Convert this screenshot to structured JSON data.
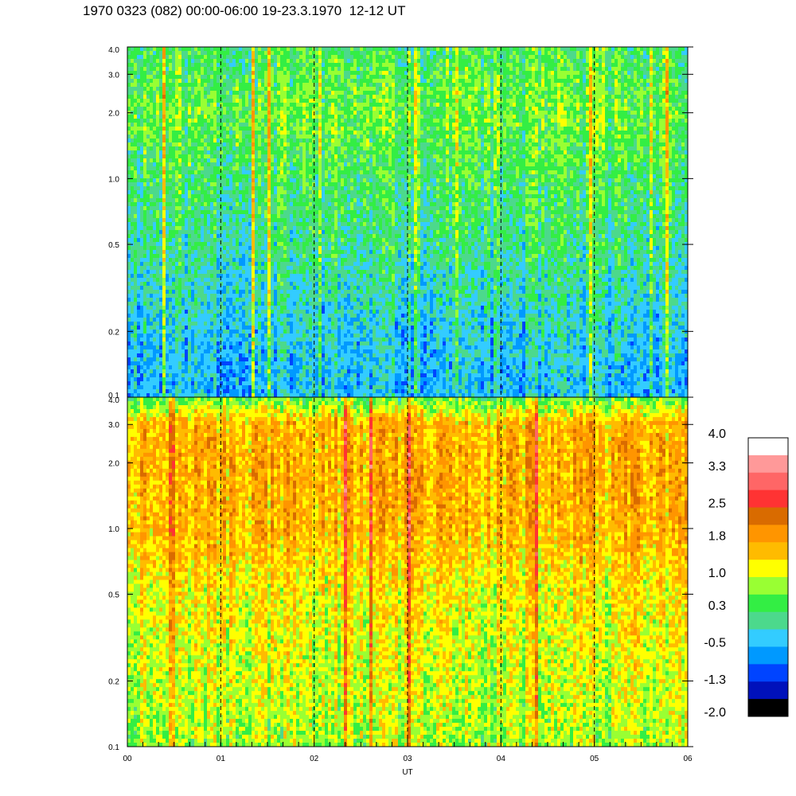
{
  "title": "1970 0323 (082) 00:00-06:00 19-23.3.1970  12-12 UT",
  "chart_data": [
    {
      "type": "heatmap",
      "panel": "top",
      "title": "",
      "xlabel": "",
      "ylabel": "",
      "y_scale": "log",
      "ylim": [
        0.1,
        4.0
      ],
      "y_ticks": [
        "4.0",
        "3.0",
        "2.0",
        "1.0",
        "0.5",
        "0.2",
        "0.1"
      ],
      "xlim": [
        0,
        6
      ],
      "dominant_level_profile": [
        {
          "y": 4.0,
          "level": 0.3
        },
        {
          "y": 2.0,
          "level": 0.6
        },
        {
          "y": 1.0,
          "level": 0.3
        },
        {
          "y": 0.5,
          "level": 0.1
        },
        {
          "y": 0.2,
          "level": -0.3
        },
        {
          "y": 0.1,
          "level": -0.5
        }
      ]
    },
    {
      "type": "heatmap",
      "panel": "bottom",
      "title": "",
      "xlabel": "UT",
      "ylabel": "",
      "y_scale": "log",
      "ylim": [
        0.1,
        4.0
      ],
      "y_ticks": [
        "4.0",
        "3.0",
        "2.0",
        "1.0",
        "0.5",
        "0.2",
        "0.1"
      ],
      "xlim": [
        0,
        6
      ],
      "x_ticks": [
        "00",
        "01",
        "02",
        "03",
        "04",
        "05",
        "06"
      ],
      "dominant_level_profile": [
        {
          "y": 4.0,
          "level": 0.5
        },
        {
          "y": 3.0,
          "level": 1.6
        },
        {
          "y": 2.0,
          "level": 1.7
        },
        {
          "y": 1.0,
          "level": 1.6
        },
        {
          "y": 0.5,
          "level": 1.2
        },
        {
          "y": 0.2,
          "level": 1.0
        },
        {
          "y": 0.1,
          "level": 0.8
        }
      ]
    }
  ],
  "hour_markers": [
    1,
    2,
    3,
    4,
    5
  ],
  "colorbar": {
    "labels": [
      "4.0",
      "3.3",
      "2.5",
      "1.8",
      "1.0",
      "0.3",
      "-0.5",
      "-1.3",
      "-2.0"
    ],
    "range": [
      -2.0,
      4.0
    ],
    "colors": [
      "#ffffff",
      "#ff9999",
      "#ff6666",
      "#ff3333",
      "#d96b00",
      "#ff9500",
      "#ffbb00",
      "#ffff00",
      "#99ff33",
      "#33ee44",
      "#4cd98c",
      "#33ccff",
      "#0099ff",
      "#0044ff",
      "#0011bb",
      "#000000"
    ]
  }
}
